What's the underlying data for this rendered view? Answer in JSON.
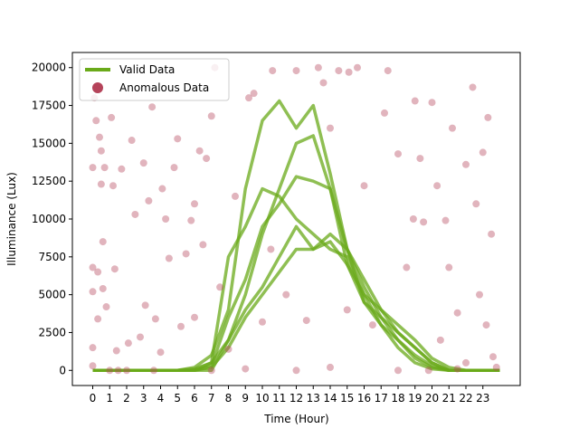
{
  "chart_data": {
    "type": "line",
    "xlabel": "Time (Hour)",
    "ylabel": "Illuminance (Lux)",
    "xlim": [
      -1.2,
      25.2
    ],
    "ylim": [
      -1000,
      21000
    ],
    "xticks": [
      0,
      1,
      2,
      3,
      4,
      5,
      6,
      7,
      8,
      9,
      10,
      11,
      12,
      13,
      14,
      15,
      16,
      17,
      18,
      19,
      20,
      21,
      22,
      23
    ],
    "yticks": [
      0,
      2500,
      5000,
      7500,
      10000,
      12500,
      15000,
      17500,
      20000
    ],
    "legend": "upper left",
    "x": [
      0,
      1,
      2,
      3,
      4,
      5,
      6,
      7,
      8,
      9,
      10,
      11,
      12,
      13,
      14,
      15,
      16,
      17,
      18,
      19,
      20,
      21,
      22,
      23,
      24
    ],
    "series": [
      {
        "name": "Valid Data",
        "color": "#6aaa1a",
        "type": "line",
        "values": [
          [
            0,
            0,
            0,
            0,
            0,
            0,
            200,
            1000,
            4000,
            12000,
            16500,
            17800,
            16000,
            17500,
            13000,
            8000,
            5500,
            3500,
            2000,
            800,
            200,
            0,
            0,
            0,
            0
          ],
          [
            0,
            0,
            0,
            0,
            0,
            0,
            100,
            500,
            2000,
            5000,
            9000,
            12000,
            15000,
            15500,
            12000,
            7000,
            5000,
            3000,
            1500,
            500,
            100,
            0,
            0,
            0,
            0
          ],
          [
            0,
            0,
            0,
            0,
            0,
            0,
            0,
            300,
            3500,
            6000,
            9500,
            11000,
            12800,
            12500,
            12000,
            8000,
            4500,
            3000,
            2000,
            1000,
            300,
            0,
            0,
            0,
            0
          ],
          [
            0,
            0,
            0,
            0,
            0,
            0,
            0,
            500,
            7500,
            9500,
            12000,
            11500,
            10000,
            9000,
            8000,
            7500,
            5000,
            4000,
            2500,
            1500,
            500,
            0,
            0,
            0,
            0
          ],
          [
            0,
            0,
            0,
            0,
            0,
            0,
            0,
            200,
            1500,
            3500,
            5000,
            6500,
            8000,
            8000,
            9000,
            8000,
            6000,
            4000,
            3000,
            2000,
            800,
            200,
            0,
            0,
            0
          ],
          [
            0,
            0,
            0,
            0,
            0,
            0,
            0,
            0,
            2000,
            4000,
            5500,
            7500,
            9500,
            8000,
            8500,
            7000,
            4500,
            3500,
            2500,
            1500,
            500,
            0,
            0,
            0,
            0
          ]
        ]
      },
      {
        "name": "Anomalous Data",
        "color": "#b5435a",
        "type": "scatter",
        "x": [
          0,
          0,
          0,
          0,
          0,
          0.1,
          0.2,
          0.3,
          0.3,
          0.4,
          0.5,
          0.5,
          0.6,
          0.6,
          0.7,
          0.8,
          1,
          1.1,
          1.2,
          1.3,
          1.4,
          1.7,
          2,
          2.1,
          2.3,
          2.5,
          2.8,
          3,
          3.1,
          3.3,
          3.5,
          3.7,
          4,
          4.1,
          4.3,
          4.5,
          4.8,
          5,
          5.2,
          5.5,
          5.8,
          6,
          6.3,
          6.5,
          6.7,
          7,
          7.2,
          7.5,
          8,
          8.4,
          9.2,
          9.5,
          10,
          10.6,
          11.4,
          12,
          12.6,
          13.3,
          13.6,
          14,
          14.5,
          15.1,
          15.6,
          16,
          16.5,
          17.2,
          17.4,
          18,
          18.5,
          18.9,
          19,
          19.3,
          19.5,
          20,
          20.3,
          20.8,
          21,
          21.2,
          21.5,
          22,
          22.4,
          22.6,
          22.8,
          23,
          23.2,
          23.3,
          23.5,
          23.6,
          23.8,
          1.5,
          3.6,
          7,
          9,
          12,
          14,
          18,
          19.8,
          21.5,
          22,
          6,
          10.5,
          15,
          20.5
        ],
        "values": [
          13400,
          6800,
          5200,
          1500,
          300,
          18000,
          16500,
          6500,
          3400,
          15400,
          14500,
          12300,
          8500,
          5400,
          13400,
          4200,
          0,
          16700,
          12200,
          6700,
          1300,
          13300,
          0,
          1800,
          15200,
          10300,
          2200,
          13700,
          4300,
          11200,
          17400,
          3400,
          1200,
          12000,
          10000,
          7400,
          13400,
          15300,
          2900,
          7700,
          9900,
          11000,
          14500,
          8300,
          14000,
          16800,
          20000,
          5500,
          1400,
          11500,
          18000,
          18300,
          3200,
          19800,
          5000,
          19800,
          3300,
          20000,
          19000,
          16000,
          19800,
          19700,
          20000,
          12200,
          3000,
          17000,
          19800,
          14300,
          6800,
          10000,
          17800,
          14000,
          9800,
          17700,
          12200,
          9900,
          6800,
          16000,
          3800,
          13600,
          18700,
          11000,
          5000,
          14400,
          3000,
          16700,
          9000,
          900,
          200,
          0,
          0,
          0,
          100,
          0,
          200,
          0,
          0,
          100,
          500,
          3500,
          8000,
          4000,
          2000
        ]
      }
    ]
  }
}
